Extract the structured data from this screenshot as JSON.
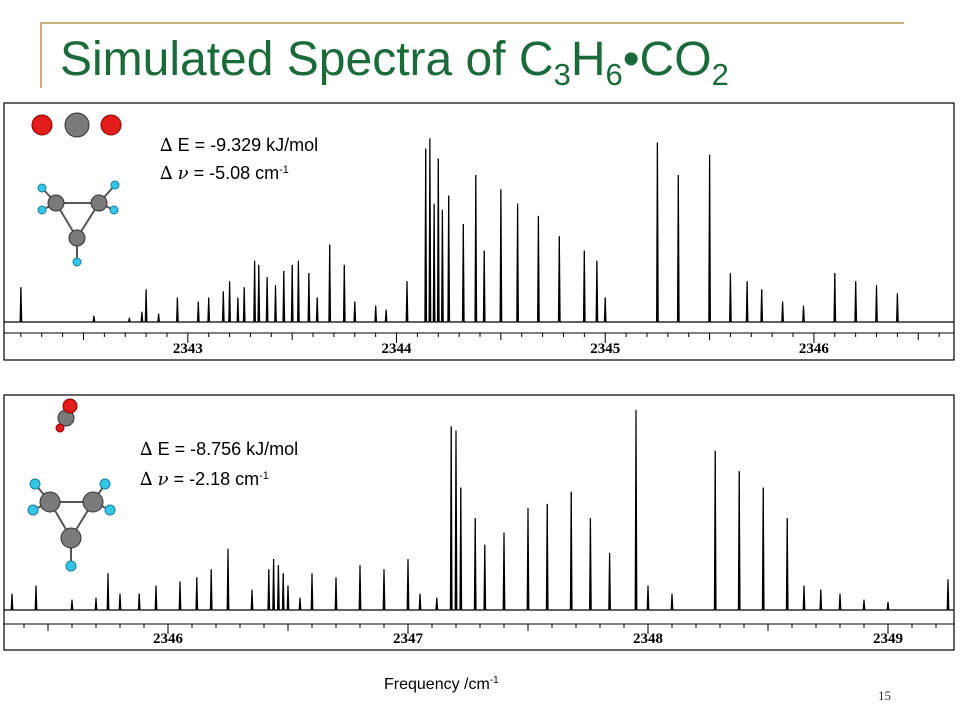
{
  "slide": {
    "title_main": "Simulated Spectra of C",
    "title_sub1": "3",
    "title_mid": "H",
    "title_sub2": "6",
    "title_end": "•CO",
    "title_sub3": "2",
    "page_number": "15",
    "xlabel_text": "Frequency /cm",
    "xlabel_sup": "-1"
  },
  "panels": [
    {
      "delta_symbol": "∆",
      "energy_label": "E = -9.329 kJ/mol",
      "nu_symbol": "ν",
      "shift_label": "= -5.08 cm",
      "shift_sup": "-1"
    },
    {
      "delta_symbol": "∆",
      "energy_label": "E = -8.756 kJ/mol",
      "nu_symbol": "ν",
      "shift_label": "= -2.18 cm",
      "shift_sup": "-1"
    }
  ],
  "colors": {
    "title": "#1b6b3a",
    "oxygen": "#e21b1b",
    "carbon": "#7a7a7a",
    "hydrogen": "#33c6e6",
    "frame": "#c8b27a"
  },
  "chart_data": [
    {
      "type": "line",
      "title": "",
      "xlabel": "",
      "ylabel": "",
      "xlim": [
        2342.1,
        2346.7
      ],
      "ylim": [
        0,
        1
      ],
      "x_ticks": [
        2343,
        2344,
        2345,
        2346
      ],
      "series": [
        {
          "peaks": [
            [
              2342.2,
              0.17
            ],
            [
              2342.55,
              0.03
            ],
            [
              2342.72,
              0.02
            ],
            [
              2342.78,
              0.05
            ],
            [
              2342.8,
              0.16
            ],
            [
              2342.86,
              0.04
            ],
            [
              2342.95,
              0.12
            ],
            [
              2343.05,
              0.1
            ],
            [
              2343.1,
              0.12
            ],
            [
              2343.17,
              0.15
            ],
            [
              2343.2,
              0.2
            ],
            [
              2343.24,
              0.12
            ],
            [
              2343.27,
              0.17
            ],
            [
              2343.32,
              0.3
            ],
            [
              2343.34,
              0.28
            ],
            [
              2343.38,
              0.22
            ],
            [
              2343.42,
              0.18
            ],
            [
              2343.46,
              0.25
            ],
            [
              2343.5,
              0.28
            ],
            [
              2343.53,
              0.3
            ],
            [
              2343.58,
              0.24
            ],
            [
              2343.62,
              0.12
            ],
            [
              2343.68,
              0.38
            ],
            [
              2343.75,
              0.28
            ],
            [
              2343.8,
              0.1
            ],
            [
              2343.9,
              0.08
            ],
            [
              2343.95,
              0.06
            ],
            [
              2344.05,
              0.2
            ],
            [
              2344.14,
              0.85
            ],
            [
              2344.16,
              0.9
            ],
            [
              2344.18,
              0.58
            ],
            [
              2344.2,
              0.8
            ],
            [
              2344.22,
              0.55
            ],
            [
              2344.25,
              0.62
            ],
            [
              2344.32,
              0.48
            ],
            [
              2344.38,
              0.72
            ],
            [
              2344.42,
              0.35
            ],
            [
              2344.5,
              0.65
            ],
            [
              2344.58,
              0.58
            ],
            [
              2344.68,
              0.52
            ],
            [
              2344.78,
              0.42
            ],
            [
              2344.9,
              0.35
            ],
            [
              2344.96,
              0.3
            ],
            [
              2345.0,
              0.12
            ],
            [
              2345.25,
              0.88
            ],
            [
              2345.35,
              0.72
            ],
            [
              2345.5,
              0.82
            ],
            [
              2345.6,
              0.24
            ],
            [
              2345.68,
              0.2
            ],
            [
              2345.75,
              0.16
            ],
            [
              2345.85,
              0.1
            ],
            [
              2345.95,
              0.08
            ],
            [
              2346.1,
              0.24
            ],
            [
              2346.2,
              0.2
            ],
            [
              2346.3,
              0.18
            ],
            [
              2346.4,
              0.14
            ]
          ]
        }
      ]
    },
    {
      "type": "line",
      "title": "",
      "xlabel": "Frequency /cm-1",
      "ylabel": "",
      "xlim": [
        2345.3,
        2349.3
      ],
      "ylim": [
        0,
        1
      ],
      "x_ticks": [
        2346,
        2347,
        2348,
        2349
      ],
      "series": [
        {
          "peaks": [
            [
              2345.35,
              0.08
            ],
            [
              2345.45,
              0.12
            ],
            [
              2345.6,
              0.05
            ],
            [
              2345.7,
              0.06
            ],
            [
              2345.75,
              0.18
            ],
            [
              2345.8,
              0.08
            ],
            [
              2345.88,
              0.08
            ],
            [
              2345.95,
              0.12
            ],
            [
              2346.05,
              0.14
            ],
            [
              2346.12,
              0.16
            ],
            [
              2346.18,
              0.2
            ],
            [
              2346.25,
              0.3
            ],
            [
              2346.35,
              0.1
            ],
            [
              2346.42,
              0.2
            ],
            [
              2346.44,
              0.25
            ],
            [
              2346.46,
              0.22
            ],
            [
              2346.48,
              0.18
            ],
            [
              2346.5,
              0.12
            ],
            [
              2346.55,
              0.06
            ],
            [
              2346.6,
              0.18
            ],
            [
              2346.7,
              0.16
            ],
            [
              2346.8,
              0.22
            ],
            [
              2346.9,
              0.2
            ],
            [
              2347.0,
              0.25
            ],
            [
              2347.05,
              0.08
            ],
            [
              2347.12,
              0.06
            ],
            [
              2347.18,
              0.9
            ],
            [
              2347.2,
              0.88
            ],
            [
              2347.22,
              0.6
            ],
            [
              2347.28,
              0.45
            ],
            [
              2347.32,
              0.32
            ],
            [
              2347.4,
              0.38
            ],
            [
              2347.5,
              0.5
            ],
            [
              2347.58,
              0.52
            ],
            [
              2347.68,
              0.58
            ],
            [
              2347.76,
              0.45
            ],
            [
              2347.84,
              0.28
            ],
            [
              2347.95,
              0.98
            ],
            [
              2348.0,
              0.12
            ],
            [
              2348.1,
              0.08
            ],
            [
              2348.28,
              0.78
            ],
            [
              2348.38,
              0.68
            ],
            [
              2348.48,
              0.6
            ],
            [
              2348.58,
              0.45
            ],
            [
              2348.65,
              0.12
            ],
            [
              2348.72,
              0.1
            ],
            [
              2348.8,
              0.08
            ],
            [
              2348.9,
              0.05
            ],
            [
              2349.0,
              0.04
            ],
            [
              2349.25,
              0.15
            ]
          ]
        }
      ]
    }
  ]
}
